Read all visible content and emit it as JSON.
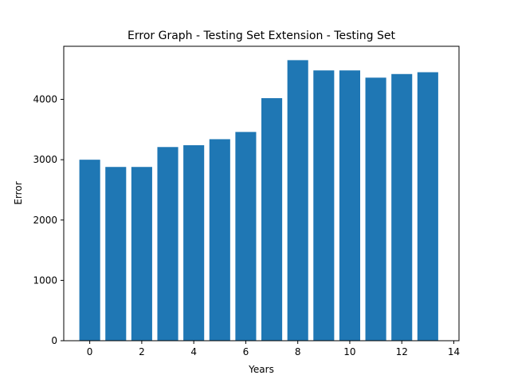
{
  "chart_data": {
    "type": "bar",
    "title": "Error Graph - Testing Set Extension - Testing Set",
    "xlabel": "Years",
    "ylabel": "Error",
    "x": [
      0,
      1,
      2,
      3,
      4,
      5,
      6,
      7,
      8,
      9,
      10,
      11,
      12,
      13
    ],
    "values": [
      3000,
      2880,
      2880,
      3210,
      3240,
      3340,
      3460,
      4020,
      4650,
      4480,
      4480,
      4360,
      4420,
      4450
    ],
    "xlim": [
      -1.0,
      14.2
    ],
    "ylim": [
      0,
      4880
    ],
    "xticks": [
      0,
      2,
      4,
      6,
      8,
      10,
      12,
      14
    ],
    "yticks": [
      0,
      1000,
      2000,
      3000,
      4000
    ],
    "grid": false,
    "bar_color": "#1f77b4"
  }
}
